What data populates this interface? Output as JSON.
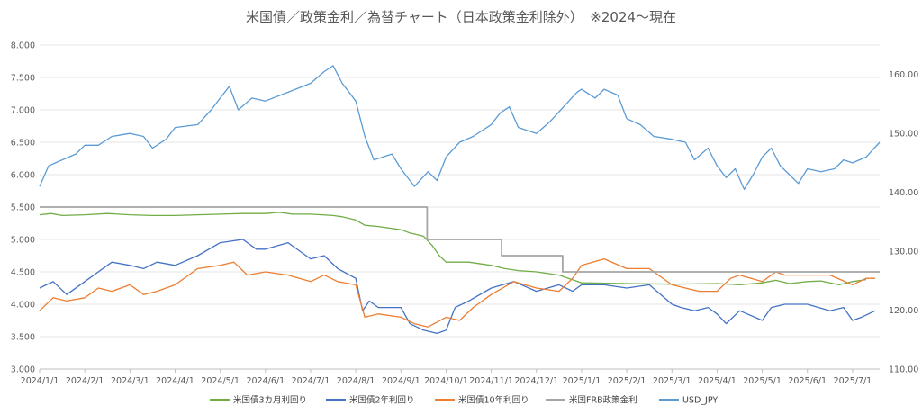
{
  "chart_data": {
    "type": "line",
    "title": "米国債／政策金利／為替チャート（日本政策金利除外）　※2024～現在",
    "xlabel": "",
    "ylabel": "",
    "x_ticks": [
      "2024/1/1",
      "2024/2/1",
      "2024/3/1",
      "2024/4/1",
      "2024/5/1",
      "2024/6/1",
      "2024/7/1",
      "2024/8/1",
      "2024/9/1",
      "2024/10/1",
      "2024/11/1",
      "2024/12/1",
      "2025/1/1",
      "2025/2/1",
      "2025/3/1",
      "2025/4/1",
      "2025/5/1",
      "2025/6/1",
      "2025/7/1"
    ],
    "y_left": {
      "min": 3.0,
      "max": 8.0,
      "ticks": [
        "3.000",
        "3.500",
        "4.000",
        "4.500",
        "5.000",
        "5.500",
        "6.000",
        "6.500",
        "7.000",
        "7.500",
        "8.000"
      ]
    },
    "y_right": {
      "min": 110.0,
      "max": 165.0,
      "ticks": [
        "110.00",
        "120.00",
        "130.00",
        "140.00",
        "150.00",
        "160.00"
      ]
    },
    "grid": true,
    "legend_position": "bottom",
    "series": [
      {
        "name": "米国債3カ月利回り",
        "color": "#70ad47",
        "axis": "left",
        "points": [
          [
            0,
            5.38
          ],
          [
            0.25,
            5.4
          ],
          [
            0.5,
            5.37
          ],
          [
            1,
            5.38
          ],
          [
            1.5,
            5.4
          ],
          [
            2,
            5.38
          ],
          [
            2.5,
            5.37
          ],
          [
            3,
            5.37
          ],
          [
            3.5,
            5.38
          ],
          [
            4,
            5.39
          ],
          [
            4.5,
            5.4
          ],
          [
            5,
            5.4
          ],
          [
            5.3,
            5.42
          ],
          [
            5.6,
            5.39
          ],
          [
            6,
            5.39
          ],
          [
            6.5,
            5.37
          ],
          [
            6.7,
            5.35
          ],
          [
            7,
            5.3
          ],
          [
            7.2,
            5.22
          ],
          [
            7.5,
            5.2
          ],
          [
            8,
            5.15
          ],
          [
            8.2,
            5.1
          ],
          [
            8.5,
            5.05
          ],
          [
            8.7,
            4.9
          ],
          [
            8.85,
            4.75
          ],
          [
            9,
            4.65
          ],
          [
            9.5,
            4.65
          ],
          [
            10,
            4.6
          ],
          [
            10.3,
            4.55
          ],
          [
            10.6,
            4.52
          ],
          [
            11,
            4.5
          ],
          [
            11.5,
            4.45
          ],
          [
            12,
            4.33
          ],
          [
            13,
            4.32
          ],
          [
            14,
            4.31
          ],
          [
            15,
            4.32
          ],
          [
            15.5,
            4.3
          ],
          [
            16,
            4.33
          ],
          [
            16.3,
            4.37
          ],
          [
            16.6,
            4.32
          ],
          [
            17,
            4.35
          ],
          [
            17.3,
            4.36
          ],
          [
            17.7,
            4.3
          ],
          [
            18,
            4.35
          ],
          [
            18.3,
            4.38
          ]
        ]
      },
      {
        "name": "米国債2年利回り",
        "color": "#4472c4",
        "axis": "left",
        "points": [
          [
            0,
            4.25
          ],
          [
            0.3,
            4.35
          ],
          [
            0.6,
            4.15
          ],
          [
            1,
            4.35
          ],
          [
            1.3,
            4.5
          ],
          [
            1.6,
            4.65
          ],
          [
            2,
            4.6
          ],
          [
            2.3,
            4.55
          ],
          [
            2.6,
            4.65
          ],
          [
            3,
            4.6
          ],
          [
            3.5,
            4.75
          ],
          [
            4,
            4.95
          ],
          [
            4.5,
            5.0
          ],
          [
            4.8,
            4.85
          ],
          [
            5,
            4.85
          ],
          [
            5.5,
            4.95
          ],
          [
            6,
            4.7
          ],
          [
            6.3,
            4.75
          ],
          [
            6.6,
            4.55
          ],
          [
            7,
            4.4
          ],
          [
            7.15,
            3.9
          ],
          [
            7.3,
            4.05
          ],
          [
            7.5,
            3.95
          ],
          [
            8,
            3.95
          ],
          [
            8.2,
            3.7
          ],
          [
            8.5,
            3.6
          ],
          [
            8.8,
            3.55
          ],
          [
            9,
            3.6
          ],
          [
            9.2,
            3.95
          ],
          [
            9.5,
            4.05
          ],
          [
            10,
            4.25
          ],
          [
            10.5,
            4.35
          ],
          [
            11,
            4.2
          ],
          [
            11.5,
            4.3
          ],
          [
            11.8,
            4.2
          ],
          [
            12,
            4.3
          ],
          [
            12.5,
            4.3
          ],
          [
            13,
            4.25
          ],
          [
            13.5,
            4.3
          ],
          [
            14,
            4.0
          ],
          [
            14.2,
            3.95
          ],
          [
            14.5,
            3.9
          ],
          [
            14.8,
            3.95
          ],
          [
            15,
            3.85
          ],
          [
            15.2,
            3.7
          ],
          [
            15.5,
            3.9
          ],
          [
            16,
            3.75
          ],
          [
            16.2,
            3.95
          ],
          [
            16.5,
            4.0
          ],
          [
            17,
            4.0
          ],
          [
            17.5,
            3.9
          ],
          [
            17.8,
            3.95
          ],
          [
            18,
            3.75
          ],
          [
            18.2,
            3.8
          ],
          [
            18.5,
            3.9
          ]
        ]
      },
      {
        "name": "米国債10年利回り",
        "color": "#ed7d31",
        "axis": "left",
        "points": [
          [
            0,
            3.9
          ],
          [
            0.3,
            4.1
          ],
          [
            0.6,
            4.05
          ],
          [
            1,
            4.1
          ],
          [
            1.3,
            4.25
          ],
          [
            1.6,
            4.2
          ],
          [
            2,
            4.3
          ],
          [
            2.3,
            4.15
          ],
          [
            2.6,
            4.2
          ],
          [
            3,
            4.3
          ],
          [
            3.5,
            4.55
          ],
          [
            4,
            4.6
          ],
          [
            4.3,
            4.65
          ],
          [
            4.6,
            4.45
          ],
          [
            5,
            4.5
          ],
          [
            5.5,
            4.45
          ],
          [
            6,
            4.35
          ],
          [
            6.3,
            4.45
          ],
          [
            6.6,
            4.35
          ],
          [
            7,
            4.3
          ],
          [
            7.2,
            3.8
          ],
          [
            7.5,
            3.85
          ],
          [
            8,
            3.8
          ],
          [
            8.3,
            3.7
          ],
          [
            8.6,
            3.65
          ],
          [
            9,
            3.8
          ],
          [
            9.3,
            3.75
          ],
          [
            9.6,
            3.95
          ],
          [
            10,
            4.15
          ],
          [
            10.5,
            4.35
          ],
          [
            11,
            4.25
          ],
          [
            11.5,
            4.2
          ],
          [
            11.8,
            4.4
          ],
          [
            12,
            4.6
          ],
          [
            12.5,
            4.7
          ],
          [
            13,
            4.55
          ],
          [
            13.5,
            4.55
          ],
          [
            14,
            4.3
          ],
          [
            14.3,
            4.25
          ],
          [
            14.6,
            4.2
          ],
          [
            15,
            4.2
          ],
          [
            15.3,
            4.4
          ],
          [
            15.5,
            4.45
          ],
          [
            16,
            4.35
          ],
          [
            16.3,
            4.5
          ],
          [
            16.5,
            4.45
          ],
          [
            17,
            4.45
          ],
          [
            17.5,
            4.45
          ],
          [
            18,
            4.3
          ],
          [
            18.3,
            4.4
          ],
          [
            18.5,
            4.4
          ]
        ]
      },
      {
        "name": "米国FRB政策金利",
        "color": "#a5a5a5",
        "axis": "left",
        "points": [
          [
            0,
            5.5
          ],
          [
            8.58,
            5.5
          ],
          [
            8.58,
            5.0
          ],
          [
            10.23,
            5.0
          ],
          [
            10.23,
            4.75
          ],
          [
            11.58,
            4.75
          ],
          [
            11.58,
            4.5
          ],
          [
            18.6,
            4.5
          ]
        ]
      },
      {
        "name": "USD_JPY",
        "color": "#5b9bd5",
        "axis": "right",
        "points": [
          [
            0,
            141.0
          ],
          [
            0.2,
            144.5
          ],
          [
            0.5,
            145.5
          ],
          [
            0.8,
            146.5
          ],
          [
            1,
            148.0
          ],
          [
            1.3,
            148.0
          ],
          [
            1.6,
            149.5
          ],
          [
            2,
            150.0
          ],
          [
            2.3,
            149.5
          ],
          [
            2.5,
            147.5
          ],
          [
            2.8,
            149.0
          ],
          [
            3,
            151.0
          ],
          [
            3.5,
            151.5
          ],
          [
            3.8,
            154.0
          ],
          [
            4,
            156.0
          ],
          [
            4.2,
            158.0
          ],
          [
            4.4,
            154.0
          ],
          [
            4.7,
            156.0
          ],
          [
            5,
            155.5
          ],
          [
            5.5,
            157.0
          ],
          [
            6,
            158.5
          ],
          [
            6.3,
            160.5
          ],
          [
            6.5,
            161.5
          ],
          [
            6.7,
            158.5
          ],
          [
            7,
            155.5
          ],
          [
            7.2,
            149.5
          ],
          [
            7.4,
            145.5
          ],
          [
            7.6,
            146.0
          ],
          [
            7.8,
            146.5
          ],
          [
            8,
            144.0
          ],
          [
            8.3,
            141.0
          ],
          [
            8.6,
            143.5
          ],
          [
            8.8,
            142.0
          ],
          [
            9,
            146.0
          ],
          [
            9.3,
            148.5
          ],
          [
            9.6,
            149.5
          ],
          [
            10,
            151.5
          ],
          [
            10.2,
            153.5
          ],
          [
            10.4,
            154.5
          ],
          [
            10.6,
            151.0
          ],
          [
            11,
            150.0
          ],
          [
            11.3,
            152.0
          ],
          [
            11.6,
            154.5
          ],
          [
            11.9,
            157.0
          ],
          [
            12,
            157.5
          ],
          [
            12.3,
            156.0
          ],
          [
            12.5,
            157.5
          ],
          [
            12.8,
            156.5
          ],
          [
            13,
            152.5
          ],
          [
            13.3,
            151.5
          ],
          [
            13.6,
            149.5
          ],
          [
            14,
            149.0
          ],
          [
            14.3,
            148.5
          ],
          [
            14.5,
            145.5
          ],
          [
            14.8,
            147.5
          ],
          [
            15,
            144.5
          ],
          [
            15.2,
            142.5
          ],
          [
            15.4,
            144.0
          ],
          [
            15.6,
            140.5
          ],
          [
            15.8,
            143.0
          ],
          [
            16,
            146.0
          ],
          [
            16.2,
            147.5
          ],
          [
            16.4,
            144.5
          ],
          [
            16.6,
            143.0
          ],
          [
            16.8,
            141.5
          ],
          [
            17,
            144.0
          ],
          [
            17.3,
            143.5
          ],
          [
            17.6,
            144.0
          ],
          [
            17.8,
            145.5
          ],
          [
            18,
            145.0
          ],
          [
            18.3,
            146.0
          ],
          [
            18.6,
            148.5
          ]
        ]
      }
    ]
  }
}
